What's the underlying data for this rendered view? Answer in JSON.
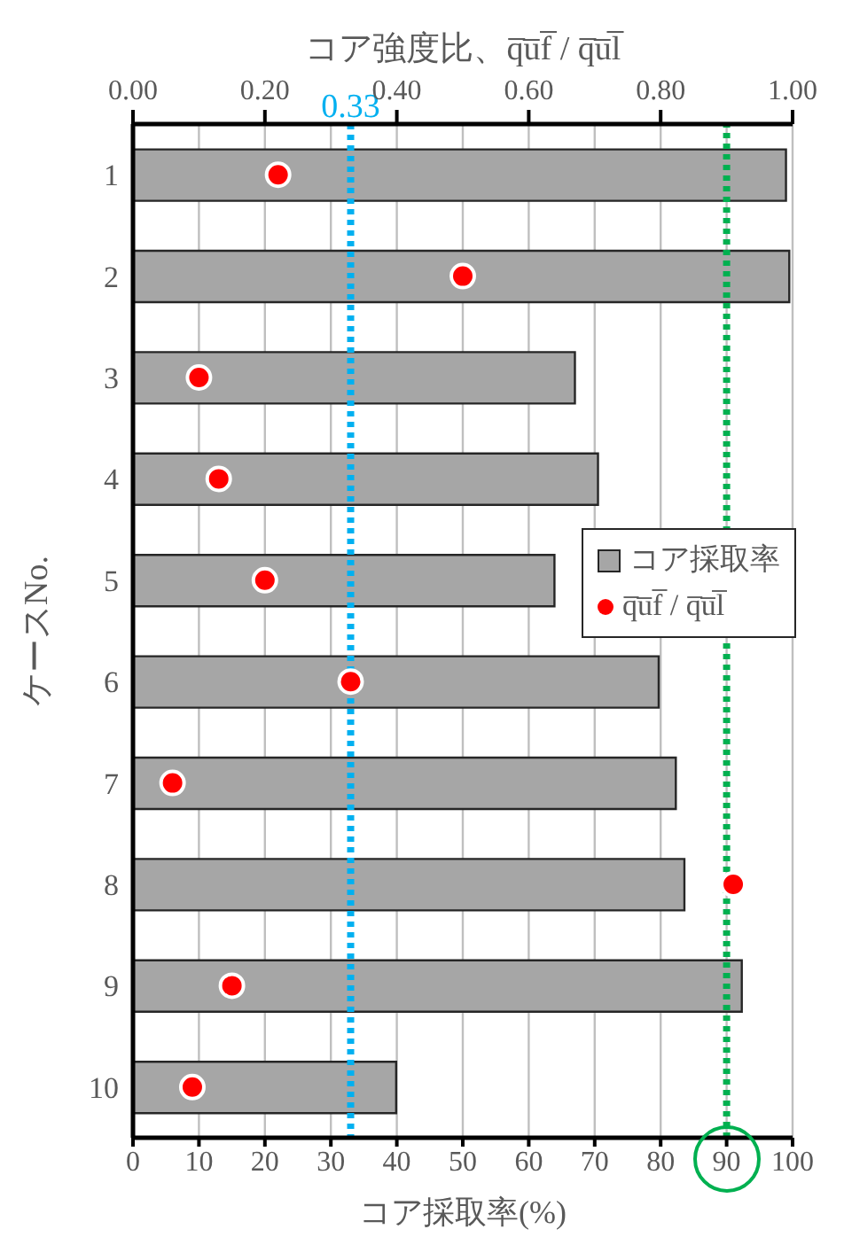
{
  "chart_data": {
    "type": "bar",
    "orientation": "horizontal",
    "xlabel": "コア採取率(%)",
    "ylabel": "ケースNo.",
    "x2label": "コア強度比、q̅u̅f̅ / q̅u̅l̅",
    "categories": [
      "1",
      "2",
      "3",
      "4",
      "5",
      "6",
      "7",
      "8",
      "9",
      "10"
    ],
    "series": [
      {
        "name": "コア採取率",
        "color": "#a6a6a6",
        "values": [
          99.0,
          99.5,
          67.0,
          70.5,
          63.9,
          79.7,
          82.3,
          83.6,
          92.3,
          39.9
        ]
      },
      {
        "name": "q̅u̅f̅ / q̅u̅l̅",
        "type": "scatter",
        "axis": "x2",
        "color": "#ff0000",
        "marker": "circle",
        "values": [
          0.22,
          0.5,
          0.1,
          0.13,
          0.2,
          0.33,
          0.06,
          0.91,
          0.15,
          0.09
        ]
      }
    ],
    "xlim": [
      0,
      100
    ],
    "xticks": [
      0,
      10,
      20,
      30,
      40,
      50,
      60,
      70,
      80,
      90,
      100
    ],
    "x2lim": [
      0,
      1
    ],
    "x2ticks": [
      {
        "value": 0,
        "label": "0.00"
      },
      {
        "value": 0.2,
        "label": "0.20"
      },
      {
        "value": 0.4,
        "label": "0.40"
      },
      {
        "value": 0.6,
        "label": "0.60"
      },
      {
        "value": 0.8,
        "label": "0.80"
      },
      {
        "value": 1,
        "label": "1.00"
      }
    ],
    "ref_lines": [
      {
        "axis": "x2",
        "value": 0.33,
        "label": "0.33",
        "color": "#00b0f0",
        "line_style": "dotted"
      },
      {
        "axis": "x",
        "value": 90,
        "label": null,
        "color": "#00b050",
        "line_style": "dotted"
      }
    ],
    "grid": "x",
    "legend": "right"
  }
}
